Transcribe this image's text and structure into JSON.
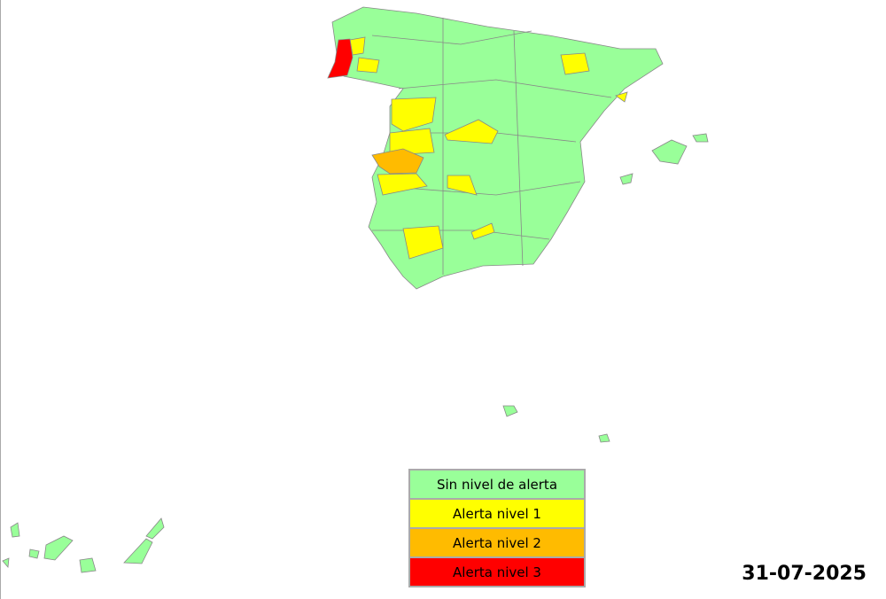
{
  "legend": {
    "items": [
      {
        "label": "Sin nivel de alerta",
        "color": "#99ff99"
      },
      {
        "label": "Alerta nivel 1",
        "color": "#ffff00"
      },
      {
        "label": "Alerta nivel 2",
        "color": "#ffbb00"
      },
      {
        "label": "Alerta nivel 3",
        "color": "#ff0000"
      }
    ]
  },
  "date": "31-07-2025"
}
